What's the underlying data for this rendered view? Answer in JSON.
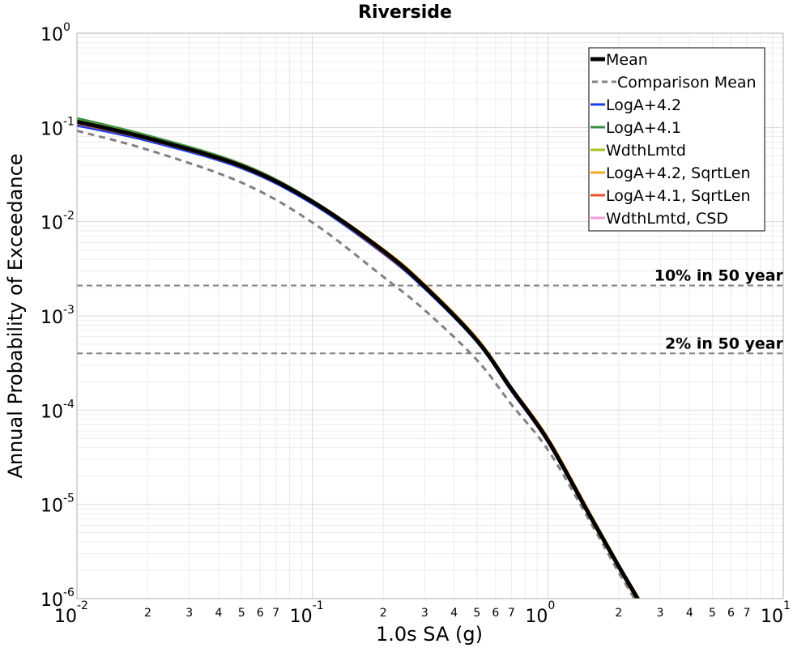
{
  "chart_data": {
    "type": "line",
    "title": "Riverside",
    "xlabel": "1.0s SA (g)",
    "ylabel": "Annual Probability of Exceedance",
    "xscale": "log",
    "yscale": "log",
    "xlim": [
      0.01,
      10
    ],
    "ylim": [
      1e-06,
      1
    ],
    "grid": true,
    "legend_position": "top-right",
    "x_major_ticks": [
      {
        "base": "10",
        "exp": "-2"
      },
      {
        "base": "10",
        "exp": "-1"
      },
      {
        "base": "10",
        "exp": "0"
      },
      {
        "base": "10",
        "exp": "1"
      }
    ],
    "y_major_ticks": [
      {
        "base": "10",
        "exp": "-6"
      },
      {
        "base": "10",
        "exp": "-5"
      },
      {
        "base": "10",
        "exp": "-4"
      },
      {
        "base": "10",
        "exp": "-3"
      },
      {
        "base": "10",
        "exp": "-2"
      },
      {
        "base": "10",
        "exp": "-1"
      },
      {
        "base": "10",
        "exp": "0"
      }
    ],
    "x_minor_tick_labels": [
      "2",
      "3",
      "4",
      "5",
      "6",
      "7"
    ],
    "x": [
      0.01,
      0.02,
      0.05,
      0.1,
      0.2,
      0.3,
      0.5,
      0.7,
      1.0,
      1.5,
      2.0,
      2.5
    ],
    "series": [
      {
        "name": "LogA+4.2",
        "color": "#1a3fe6",
        "style": "solid",
        "values": [
          0.105,
          0.072,
          0.037,
          0.0155,
          0.0046,
          0.00195,
          0.00053,
          0.00016,
          4.6e-05,
          7.5e-06,
          2.1e-06,
          8e-07
        ]
      },
      {
        "name": "LogA+4.1",
        "color": "#3b8f45",
        "style": "solid",
        "values": [
          0.125,
          0.082,
          0.041,
          0.0168,
          0.0049,
          0.00205,
          0.00055,
          0.000165,
          4.7e-05,
          7.6e-06,
          2.1e-06,
          8e-07
        ]
      },
      {
        "name": "WdthLmtd",
        "color": "#a8c51c",
        "style": "solid",
        "values": [
          0.118,
          0.079,
          0.04,
          0.0166,
          0.005,
          0.0021,
          0.00056,
          0.00017,
          4.9e-05,
          7.9e-06,
          2.2e-06,
          8.5e-07
        ]
      },
      {
        "name": "LogA+4.2, SqrtLen",
        "color": "#f5a623",
        "style": "solid",
        "values": [
          0.113,
          0.077,
          0.04,
          0.0167,
          0.0051,
          0.00215,
          0.00058,
          0.000175,
          5.1e-05,
          8.3e-06,
          2.3e-06,
          9e-07
        ]
      },
      {
        "name": "LogA+4.1, SqrtLen",
        "color": "#e8532b",
        "style": "solid",
        "values": [
          0.11,
          0.075,
          0.038,
          0.016,
          0.0047,
          0.002,
          0.00054,
          0.000162,
          4.65e-05,
          7.6e-06,
          2.1e-06,
          8e-07
        ]
      },
      {
        "name": "WdthLmtd, CSD",
        "color": "#f29be0",
        "style": "solid",
        "values": [
          0.112,
          0.076,
          0.039,
          0.0162,
          0.0048,
          0.00202,
          0.00054,
          0.000164,
          4.7e-05,
          7.7e-06,
          2.1e-06,
          8e-07
        ]
      },
      {
        "name": "Comparison Mean",
        "color": "#808080",
        "style": "dashed",
        "values": [
          0.092,
          0.058,
          0.026,
          0.0098,
          0.0026,
          0.00115,
          0.00034,
          0.000115,
          3.8e-05,
          6.8e-06,
          1.9e-06,
          7.5e-07
        ]
      },
      {
        "name": "Mean",
        "color": "#000000",
        "style": "solid",
        "values": [
          0.115,
          0.077,
          0.039,
          0.0163,
          0.0049,
          0.00205,
          0.00055,
          0.000168,
          4.8e-05,
          7.8e-06,
          2.2e-06,
          8.5e-07
        ]
      }
    ],
    "legend_order": [
      "Mean",
      "Comparison Mean",
      "LogA+4.2",
      "LogA+4.1",
      "WdthLmtd",
      "LogA+4.2, SqrtLen",
      "LogA+4.1, SqrtLen",
      "WdthLmtd, CSD"
    ],
    "reference_lines": [
      {
        "label": "10% in 50 year",
        "y": 0.0021,
        "color": "#808080",
        "style": "dashed"
      },
      {
        "label": "2% in 50 year",
        "y": 0.0004,
        "color": "#808080",
        "style": "dashed"
      }
    ]
  }
}
